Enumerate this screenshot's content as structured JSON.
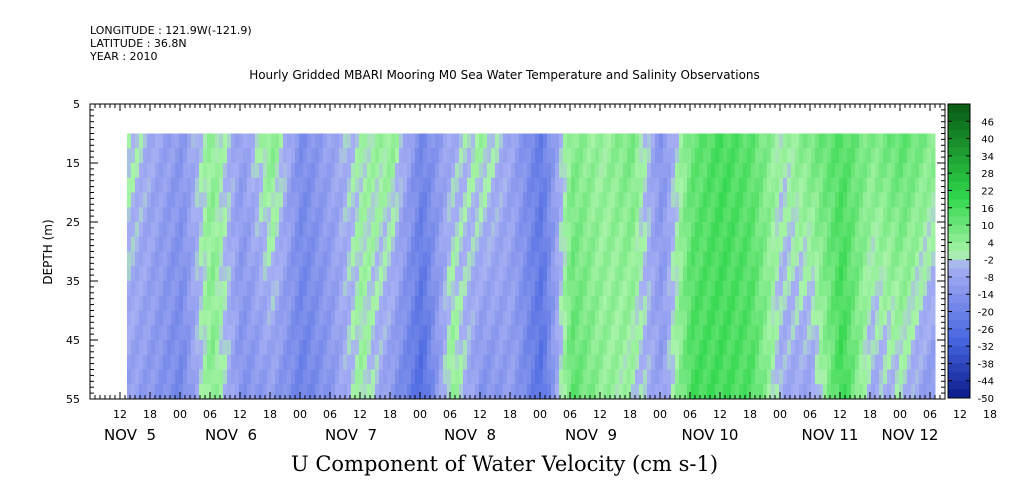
{
  "header": {
    "longitude": "LONGITUDE : 121.9W(-121.9)",
    "latitude": "LATITUDE : 36.8N",
    "year": "YEAR : 2010"
  },
  "chart_data": {
    "type": "heatmap",
    "title": "Hourly Gridded MBARI Mooring M0 Sea Water Temperature and Salinity Observations",
    "xlabel": "U Component of Water Velocity (cm s-1)",
    "ylabel": "DEPTH (m)",
    "y_ticks": [
      "5",
      "15",
      "25",
      "35",
      "45",
      "55"
    ],
    "ylim": [
      5,
      55
    ],
    "x_hour_ticks": [
      "12",
      "18",
      "00",
      "06",
      "12",
      "18",
      "00",
      "06",
      "12",
      "18",
      "00",
      "06",
      "12",
      "18",
      "00",
      "06",
      "12",
      "18",
      "00",
      "06",
      "12",
      "18",
      "00",
      "06",
      "12",
      "18",
      "00",
      "06",
      "12",
      "18",
      "00",
      "06"
    ],
    "x_day_labels": [
      "NOV  5",
      "NOV  6",
      "NOV  7",
      "NOV  8",
      "NOV  9",
      "NOV 10",
      "NOV 11",
      "NOV 12"
    ],
    "colorbar_labels": [
      "46",
      "40",
      "34",
      "28",
      "22",
      "16",
      "10",
      "4",
      "-2",
      "-8",
      "-14",
      "-20",
      "-26",
      "-32",
      "-38",
      "-44",
      "-50"
    ],
    "colorbar_range": [
      -50,
      52
    ],
    "data_depth_range": [
      10,
      55
    ],
    "palette": {
      "very_negative": "#0b1a8a",
      "negative": "#4866e0",
      "slightly_negative": "#a8b0f4",
      "slightly_positive": "#a8f4a8",
      "positive": "#2ed64a",
      "very_positive": "#0a5a14"
    },
    "column_profile_x": [
      "Nov 5 12:00",
      "Nov 5 18:00",
      "Nov 6 00:00",
      "Nov 6 06:00",
      "Nov 6 12:00",
      "Nov 6 18:00",
      "Nov 7 00:00",
      "Nov 7 06:00",
      "Nov 7 12:00",
      "Nov 7 18:00",
      "Nov 8 00:00",
      "Nov 8 06:00",
      "Nov 8 12:00",
      "Nov 8 18:00",
      "Nov 9 00:00",
      "Nov 9 06:00",
      "Nov 9 12:00",
      "Nov 9 18:00",
      "Nov 10 00:00",
      "Nov 10 06:00",
      "Nov 10 12:00",
      "Nov 10 18:00",
      "Nov 11 00:00",
      "Nov 11 06:00",
      "Nov 11 12:00",
      "Nov 11 18:00",
      "Nov 12 00:00",
      "Nov 12 06:00"
    ],
    "column_profile_u_surface": [
      2,
      -6,
      -12,
      4,
      -10,
      6,
      -16,
      -8,
      0,
      4,
      -18,
      -6,
      2,
      -8,
      -22,
      6,
      2,
      8,
      -14,
      10,
      16,
      12,
      0,
      8,
      14,
      6,
      12,
      6
    ],
    "column_profile_u_bottom": [
      -8,
      -12,
      -18,
      6,
      -14,
      -10,
      -20,
      -12,
      2,
      -12,
      -28,
      4,
      -14,
      -10,
      -26,
      12,
      4,
      0,
      -10,
      16,
      16,
      14,
      -6,
      -8,
      18,
      -6,
      -2,
      -12
    ]
  }
}
